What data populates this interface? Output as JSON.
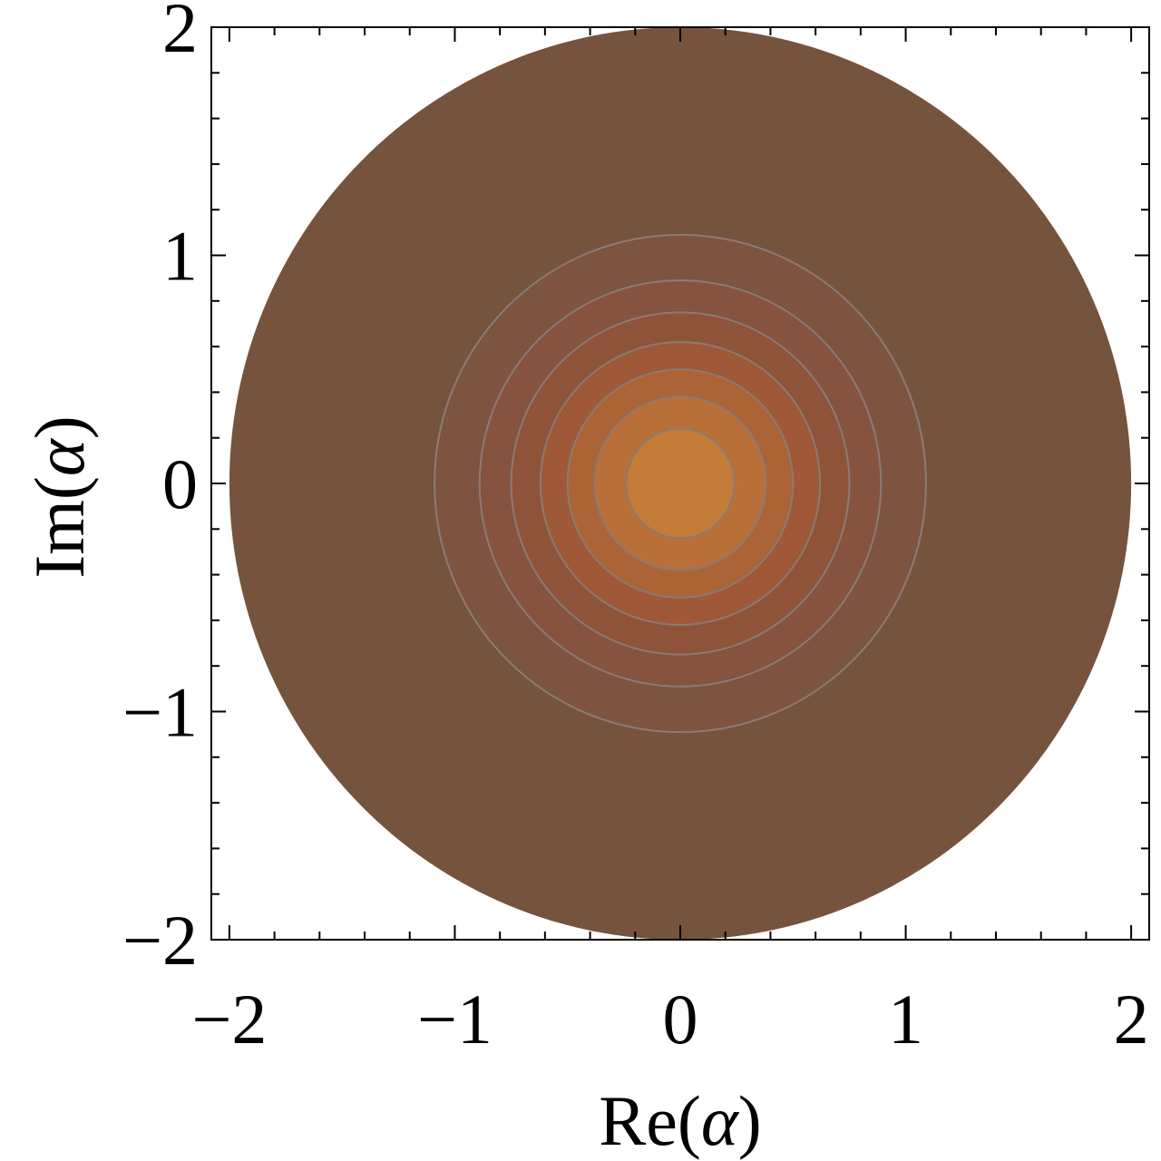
{
  "chart_data": {
    "type": "heatmap",
    "plot_style": "contour",
    "xlabel": "Re(",
    "xlabel_symbol": "α",
    "xlabel_close": ")",
    "ylabel": "Im(",
    "ylabel_symbol": "α",
    "ylabel_close": ")",
    "xlim": [
      -2.08,
      2.08
    ],
    "ylim": [
      -2.0,
      2.0
    ],
    "x_ticks": [
      {
        "value": -2,
        "label": "−2"
      },
      {
        "value": -1,
        "label": "−1"
      },
      {
        "value": 0,
        "label": "0"
      },
      {
        "value": 1,
        "label": "1"
      },
      {
        "value": 2,
        "label": "2"
      }
    ],
    "y_ticks": [
      {
        "value": -2,
        "label": "−2"
      },
      {
        "value": -1,
        "label": "−1"
      },
      {
        "value": 0,
        "label": "0"
      },
      {
        "value": 1,
        "label": "1"
      },
      {
        "value": 2,
        "label": "2"
      }
    ],
    "minor_tick_step": 0.2,
    "domain_radius": 2.0,
    "contour_radii": [
      1.09,
      0.89,
      0.75,
      0.62,
      0.5,
      0.38,
      0.24
    ],
    "region_colors": [
      "#76533d",
      "#7d5440",
      "#85533e",
      "#8f533a",
      "#9f5938",
      "#ab6436",
      "#b97038",
      "#c47c39"
    ],
    "contour_line_color": "#8a7b74",
    "grid": false,
    "legend": "none"
  }
}
